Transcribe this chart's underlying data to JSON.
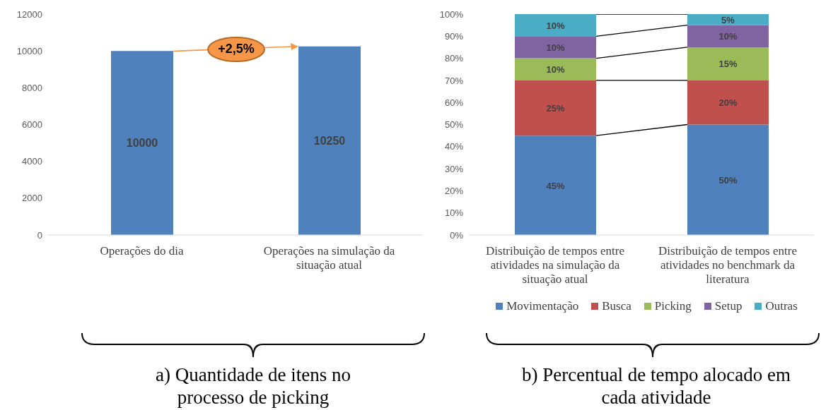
{
  "chart_data": [
    {
      "type": "bar",
      "title": "a) Quantidade de itens no processo de picking",
      "categories": [
        "Operações do dia",
        "Operações na simulação da situação atual"
      ],
      "values": [
        10000,
        10250
      ],
      "color": "#4f81bd",
      "ylim": [
        0,
        12000
      ],
      "yticks": [
        0,
        2000,
        4000,
        6000,
        8000,
        10000,
        12000
      ],
      "data_labels": true,
      "annotations": [
        "+2,5%"
      ]
    },
    {
      "type": "bar",
      "stacked": true,
      "title": "b) Percentual de tempo alocado em cada atividade",
      "categories": [
        "Distribuição de tempos entre atividades na simulação da situação atual",
        "Distribuição de tempos entre atividades no benchmark da literatura"
      ],
      "legend": "bottom",
      "ylim": [
        0,
        100
      ],
      "yticks": [
        {
          "value": 0,
          "label": "0%"
        },
        {
          "value": 10,
          "label": "10%"
        },
        {
          "value": 20,
          "label": "20%"
        },
        {
          "value": 30,
          "label": "30%"
        },
        {
          "value": 40,
          "label": "40%"
        },
        {
          "value": 50,
          "label": "50%"
        },
        {
          "value": 60,
          "label": "60%"
        },
        {
          "value": 70,
          "label": "70%"
        },
        {
          "value": 80,
          "label": "80%"
        },
        {
          "value": 90,
          "label": "90%"
        },
        {
          "value": 100,
          "label": "100%"
        }
      ],
      "series": [
        {
          "name": "Movimentação",
          "color": "#4f81bd",
          "values": [
            45,
            50
          ],
          "value_labels": [
            "45%",
            "50%"
          ]
        },
        {
          "name": "Busca",
          "color": "#c0504d",
          "values": [
            25,
            20
          ],
          "value_labels": [
            "25%",
            "20%"
          ]
        },
        {
          "name": "Picking",
          "color": "#9bbb59",
          "values": [
            10,
            15
          ],
          "value_labels": [
            "10%",
            "15%"
          ]
        },
        {
          "name": "Setup",
          "color": "#8064a2",
          "values": [
            10,
            10
          ],
          "value_labels": [
            "10%",
            "10%"
          ]
        },
        {
          "name": "Outras",
          "color": "#4bacc6",
          "values": [
            10,
            5
          ],
          "value_labels": [
            "10%",
            "5%"
          ]
        }
      ]
    }
  ]
}
